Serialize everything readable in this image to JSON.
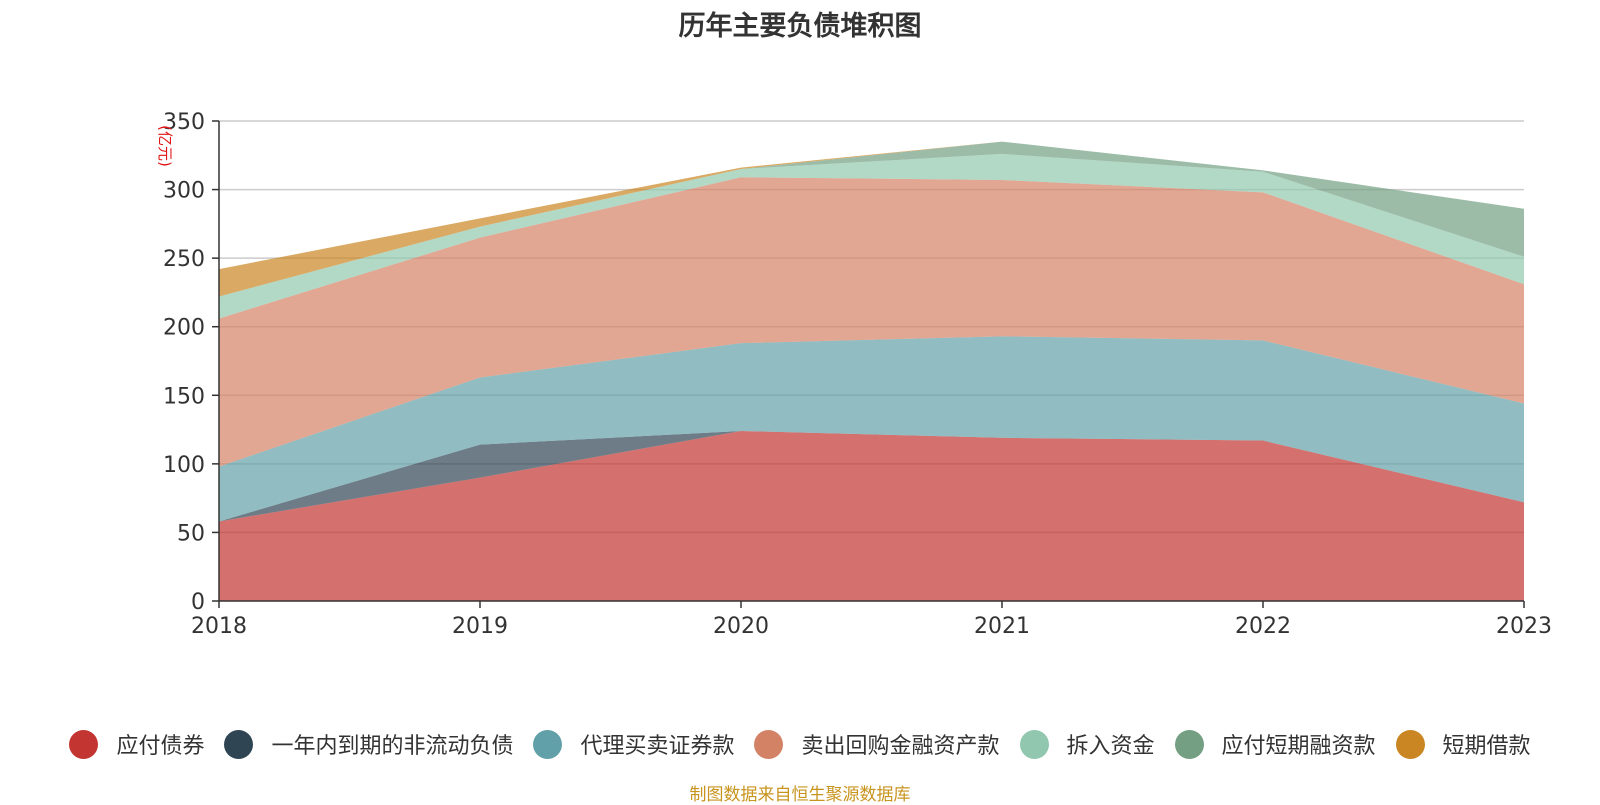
{
  "chart_data": {
    "type": "area",
    "stacked": true,
    "title": "历年主要负债堆积图",
    "ylabel": "(亿元)",
    "xlabel": "",
    "ylim": [
      0,
      350
    ],
    "yticks": [
      0,
      50,
      100,
      150,
      200,
      250,
      300,
      350
    ],
    "categories": [
      "2018",
      "2019",
      "2020",
      "2021",
      "2022",
      "2023"
    ],
    "series": [
      {
        "name": "应付债券",
        "color": "#c23531",
        "values": [
          58,
          90,
          124,
          119,
          117,
          72
        ]
      },
      {
        "name": "一年内到期的非流动负债",
        "color": "#2f4554",
        "values": [
          0,
          24,
          0,
          0,
          0,
          0
        ]
      },
      {
        "name": "代理买卖证券款",
        "color": "#61a0a8",
        "values": [
          40,
          49,
          64,
          74,
          73,
          72
        ]
      },
      {
        "name": "卖出回购金融资产款",
        "color": "#d48265",
        "values": [
          108,
          102,
          121,
          114,
          108,
          87
        ]
      },
      {
        "name": "拆入资金",
        "color": "#91c7ae",
        "values": [
          16,
          8,
          6,
          19,
          15,
          20
        ]
      },
      {
        "name": "应付短期融资款",
        "color": "#749f83",
        "values": [
          0,
          0,
          0,
          9,
          1,
          35
        ]
      },
      {
        "name": "短期借款",
        "color": "#ca8622",
        "values": [
          20,
          6,
          1,
          0,
          0,
          0
        ]
      }
    ],
    "grid": true,
    "legend_position": "bottom"
  },
  "source_note": "制图数据来自恒生聚源数据库"
}
